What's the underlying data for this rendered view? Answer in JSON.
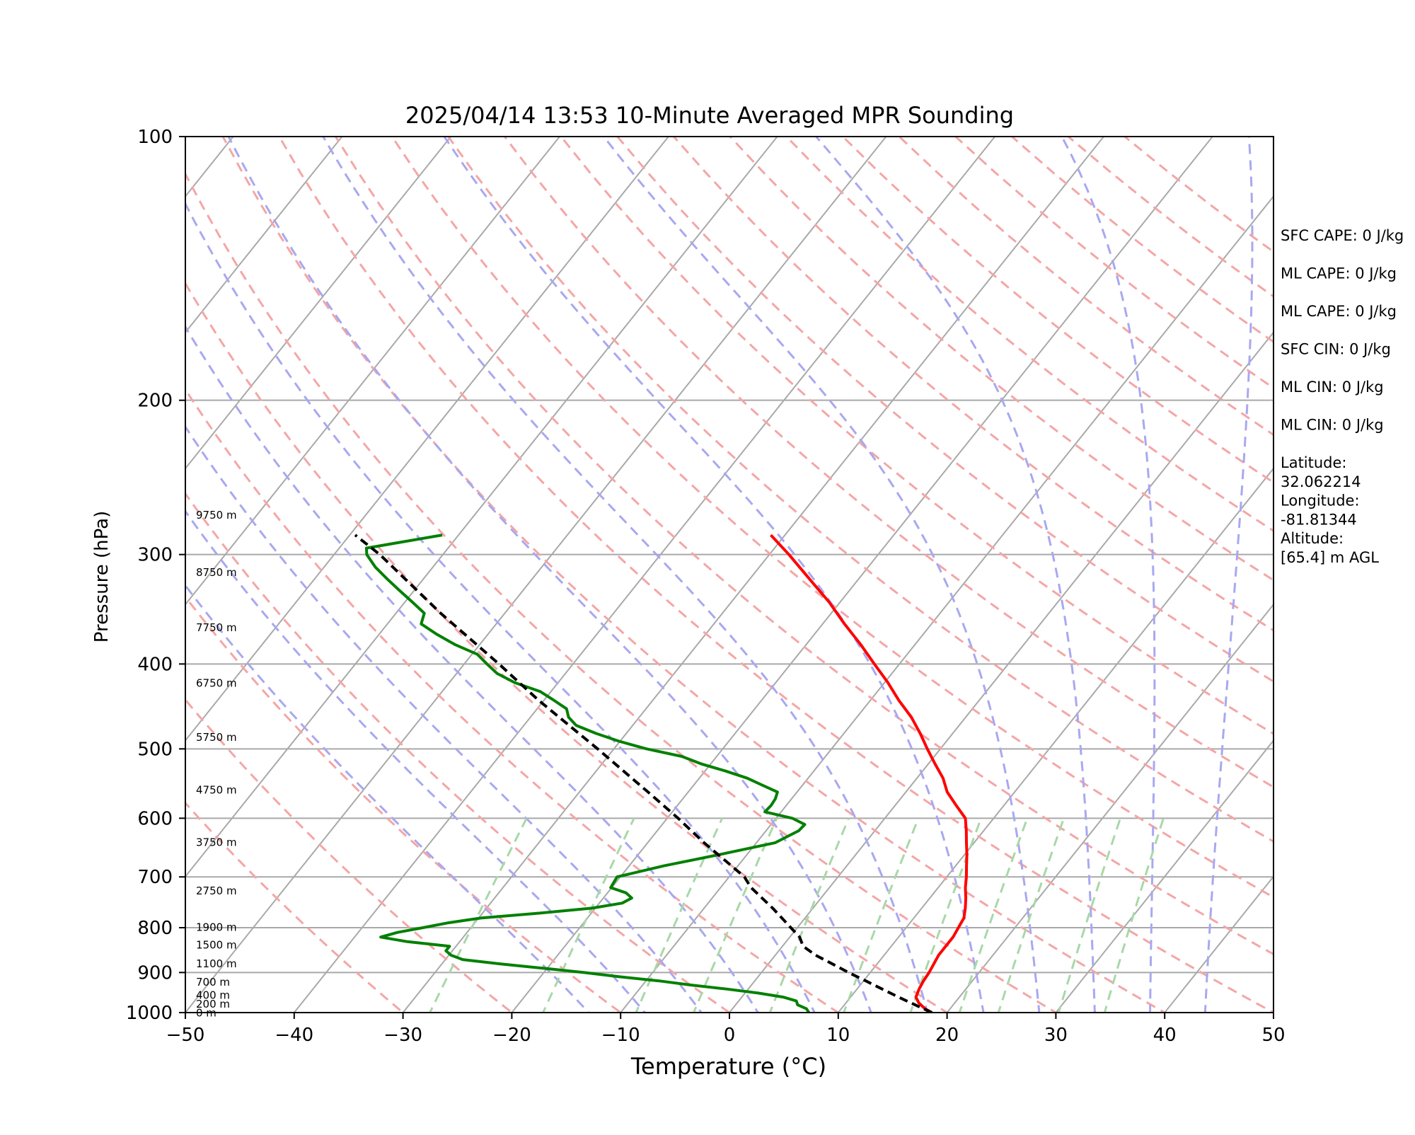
{
  "chart_data": {
    "type": "line",
    "subtype": "skew-T log-P",
    "title": "2025/04/14 13:53 10-Minute Averaged MPR Sounding",
    "xlabel": "Temperature (°C)",
    "ylabel": "Pressure (hPa)",
    "xlim": [
      -50,
      50
    ],
    "ylim": [
      1000,
      100
    ],
    "y_scale": "log",
    "x_ticks": [
      -50,
      -40,
      -30,
      -20,
      -10,
      0,
      10,
      20,
      30,
      40,
      50
    ],
    "x_tick_labels": [
      "−50",
      "−40",
      "−30",
      "−20",
      "−10",
      "0",
      "10",
      "20",
      "30",
      "40",
      "50"
    ],
    "y_ticks": [
      1000,
      900,
      800,
      700,
      600,
      500,
      400,
      300,
      200,
      100
    ],
    "y_tick_labels": [
      "1000",
      "900",
      "800",
      "700",
      "600",
      "500",
      "400",
      "300",
      "200",
      "100"
    ],
    "grid": "horizontal isobars at y ticks; skewed isotherms",
    "background_lines": {
      "isotherms_color": "#a9a9a9",
      "dry_adiabats_color": "#f4a6a6",
      "moist_adiabats_color": "#a8a8f0",
      "mixing_ratio_color": "#a8d8a8"
    },
    "series": [
      {
        "role": "temperature",
        "color": "#ff0000",
        "p": [
          1000,
          990,
          975,
          960,
          940,
          920,
          900,
          880,
          860,
          840,
          820,
          800,
          780,
          760,
          740,
          720,
          700,
          680,
          660,
          640,
          620,
          600,
          580,
          560,
          540,
          520,
          500,
          480,
          460,
          440,
          420,
          400,
          380,
          360,
          340,
          320,
          300,
          285
        ],
        "t": [
          18.6,
          17.7,
          16.7,
          16.0,
          15.7,
          15.5,
          15.4,
          15.2,
          15.0,
          15.0,
          15.0,
          14.8,
          14.6,
          14.0,
          13.3,
          12.5,
          11.8,
          11.0,
          10.2,
          9.3,
          8.4,
          7.4,
          5.6,
          3.8,
          2.4,
          0.6,
          -1.2,
          -3.0,
          -5.0,
          -7.4,
          -9.7,
          -12.3,
          -15.0,
          -18.0,
          -21.0,
          -24.5,
          -28.2,
          -31.3
        ]
      },
      {
        "role": "dewpoint",
        "color": "#008000",
        "p": [
          1000,
          990,
          980,
          970,
          960,
          950,
          940,
          930,
          920,
          910,
          900,
          890,
          880,
          870,
          860,
          850,
          840,
          830,
          820,
          810,
          800,
          790,
          780,
          770,
          760,
          750,
          740,
          730,
          720,
          700,
          680,
          660,
          640,
          620,
          610,
          600,
          590,
          580,
          570,
          560,
          550,
          540,
          530,
          520,
          510,
          500,
          490,
          480,
          470,
          460,
          450,
          440,
          430,
          420,
          410,
          400,
          390,
          380,
          370,
          360,
          350,
          340,
          330,
          320,
          310,
          300,
          295,
          290,
          285
        ],
        "t": [
          7.3,
          6.8,
          5.7,
          5.3,
          3.8,
          1.2,
          -2.0,
          -5.6,
          -8.8,
          -12.8,
          -16.3,
          -20.4,
          -24.6,
          -28.4,
          -29.8,
          -30.6,
          -30.6,
          -34.8,
          -37.6,
          -36.4,
          -34.4,
          -32.5,
          -29.8,
          -24.8,
          -20.3,
          -17.9,
          -17.4,
          -18.3,
          -20.1,
          -20.3,
          -16.8,
          -12.5,
          -8.3,
          -7.0,
          -6.9,
          -8.5,
          -11.5,
          -11.4,
          -11.5,
          -11.8,
          -13.7,
          -15.6,
          -18.1,
          -20.9,
          -23.2,
          -27.0,
          -30.1,
          -32.8,
          -35.2,
          -36.5,
          -37.3,
          -39.1,
          -41.0,
          -44.0,
          -46.3,
          -47.9,
          -49.5,
          -52.3,
          -54.7,
          -56.9,
          -57.4,
          -59.3,
          -61.3,
          -63.3,
          -65.3,
          -67.0,
          -67.5,
          -64.5,
          -61.5
        ]
      },
      {
        "role": "parcel",
        "color": "#000000",
        "style": "dashed",
        "p": [
          1000,
          980,
          960,
          940,
          920,
          900,
          880,
          860,
          840,
          820,
          800,
          760,
          720,
          700,
          680,
          640,
          600,
          560,
          500,
          440,
          400,
          350,
          300,
          285
        ],
        "t": [
          18.6,
          16.5,
          14.4,
          12.3,
          10.2,
          8.0,
          5.9,
          3.7,
          1.9,
          0.9,
          -0.6,
          -3.7,
          -7.2,
          -8.6,
          -10.6,
          -14.8,
          -19.0,
          -23.7,
          -31.5,
          -40.5,
          -46.8,
          -55.9,
          -65.8,
          -69.5
        ]
      }
    ],
    "height_labels": [
      {
        "p": 999,
        "label": "0 m"
      },
      {
        "p": 976,
        "label": "200 m"
      },
      {
        "p": 954,
        "label": "400 m"
      },
      {
        "p": 921,
        "label": "700 m"
      },
      {
        "p": 878,
        "label": "1100 m"
      },
      {
        "p": 836,
        "label": "1500 m"
      },
      {
        "p": 798,
        "label": "1900 m"
      },
      {
        "p": 725,
        "label": "2750 m"
      },
      {
        "p": 638,
        "label": "3750 m"
      },
      {
        "p": 556,
        "label": "4750 m"
      },
      {
        "p": 484,
        "label": "5750 m"
      },
      {
        "p": 420,
        "label": "6750 m"
      },
      {
        "p": 363,
        "label": "7750 m"
      },
      {
        "p": 314,
        "label": "8750 m"
      },
      {
        "p": 270,
        "label": "9750 m"
      }
    ],
    "annotations": [
      "SFC CAPE: 0 J/kg",
      "ML CAPE: 0 J/kg",
      "ML CAPE: 0 J/kg",
      "SFC CIN: 0 J/kg",
      "ML CIN: 0 J/kg",
      "ML CIN: 0 J/kg",
      "Latitude:\n32.062214",
      "Longitude:\n-81.81344",
      "Altitude:\n[65.4] m AGL"
    ]
  }
}
